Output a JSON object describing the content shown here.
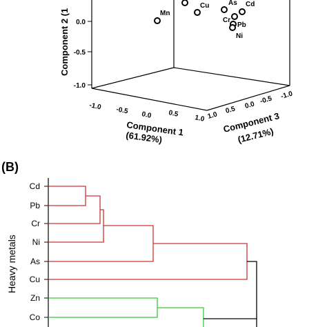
{
  "pca": {
    "type": "scatter",
    "axes": {
      "component1": {
        "label": "Component 1",
        "variance": "(61.92%)",
        "ticks": [
          "-1.0",
          "-0.5",
          "0.0",
          "0.5",
          "1.0"
        ]
      },
      "component2": {
        "label": "Component 2 (1",
        "ticks": [
          "0.0",
          "-0.5",
          "-1.0"
        ]
      },
      "component3": {
        "label": "Component 3",
        "variance": "(12.71%)",
        "ticks": [
          "1.0",
          "0.5",
          "0.0",
          "-0.5",
          "-1.0"
        ]
      }
    },
    "points": [
      {
        "name": "Mn",
        "label": "Mn"
      },
      {
        "name": "Zn",
        "label": ""
      },
      {
        "name": "Cu",
        "label": "Cu"
      },
      {
        "name": "As",
        "label": "As"
      },
      {
        "name": "Cd",
        "label": "Cd"
      },
      {
        "name": "Cr",
        "label": "Cr"
      },
      {
        "name": "Pb",
        "label": "Pb"
      },
      {
        "name": "Ni",
        "label": "Ni"
      }
    ]
  },
  "dendrogram": {
    "type": "dendrogram",
    "panel_label": "(B)",
    "ylabel": "Heavy metals",
    "leaves": [
      "Cd",
      "Pb",
      "Cr",
      "Ni",
      "As",
      "Cu",
      "Zn",
      "Co"
    ],
    "cluster_colors": {
      "cluster_1": "#cc3333",
      "cluster_2": "#33cc33",
      "root": "#000000"
    }
  },
  "chart_data": [
    {
      "type": "scatter",
      "subtype": "3d-pca-loadings",
      "xlabel": "Component 1 (61.92%)",
      "ylabel": "Component 2 (1",
      "zlabel": "Component 3 (12.71%)",
      "xlim": [
        -1.0,
        1.0
      ],
      "zlim": [
        -1.0,
        1.0
      ],
      "points": [
        {
          "name": "Mn",
          "label": "Mn"
        },
        {
          "name": "Zn",
          "label": ""
        },
        {
          "name": "Cu",
          "label": "Cu"
        },
        {
          "name": "As",
          "label": "As"
        },
        {
          "name": "Cd",
          "label": "Cd"
        },
        {
          "name": "Cr",
          "label": "Cr"
        },
        {
          "name": "Pb",
          "label": "Pb"
        },
        {
          "name": "Ni",
          "label": "Ni"
        }
      ]
    },
    {
      "type": "dendrogram",
      "ylabel": "Heavy metals",
      "leaves": [
        "Cd",
        "Pb",
        "Cr",
        "Ni",
        "As",
        "Cu",
        "Zn",
        "Co"
      ],
      "clusters": [
        {
          "color": "#cc3333",
          "members": [
            "Cd",
            "Pb",
            "Cr",
            "Ni",
            "As",
            "Cu"
          ]
        },
        {
          "color": "#33cc33",
          "members": [
            "Zn",
            "Co"
          ]
        }
      ],
      "merge_order": [
        [
          "Cd",
          "Pb"
        ],
        [
          "Cd-Pb",
          "Cr"
        ],
        [
          "Cd-Pb-Cr",
          "Ni"
        ],
        [
          "Cd-Pb-Cr-Ni",
          "As"
        ],
        [
          "Cd-Pb-Cr-Ni-As",
          "Cu"
        ],
        [
          "Zn",
          "Co"
        ],
        [
          "cluster_1",
          "cluster_2"
        ]
      ]
    }
  ]
}
